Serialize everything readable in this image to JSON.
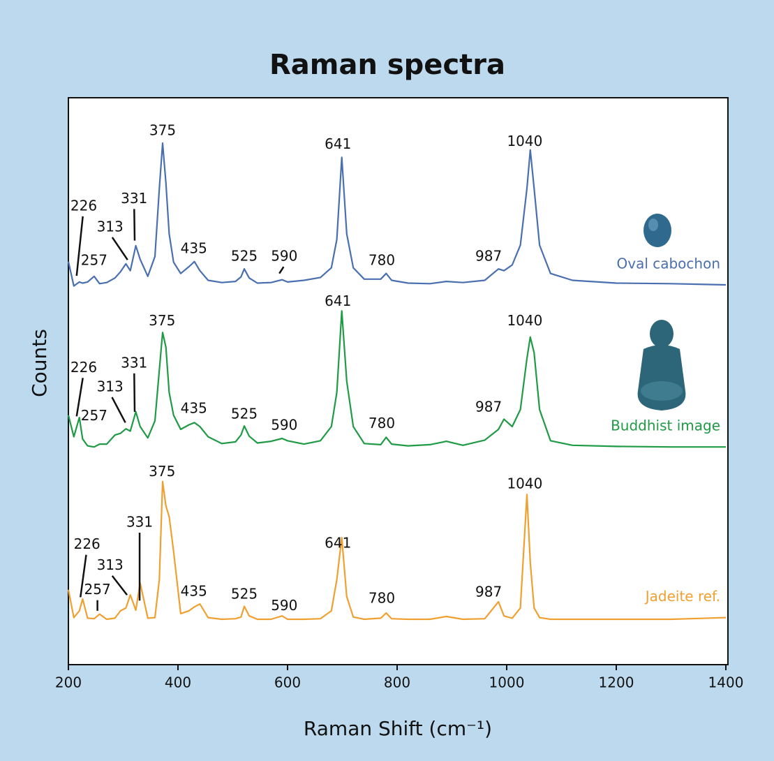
{
  "chart_data": {
    "type": "line",
    "title": "Raman spectra",
    "x_label": "Raman Shift (cm⁻¹)",
    "y_label": "Counts",
    "xlim": [
      200,
      1400
    ],
    "xticks": [
      200,
      400,
      600,
      800,
      1000,
      1200,
      1400
    ],
    "ylim": [
      0,
      100
    ],
    "x": [
      200,
      210,
      220,
      226,
      235,
      247,
      257,
      270,
      285,
      295,
      305,
      313,
      323,
      331,
      345,
      358,
      366,
      372,
      378,
      384,
      392,
      405,
      420,
      430,
      440,
      455,
      480,
      505,
      515,
      521,
      530,
      545,
      570,
      590,
      600,
      630,
      660,
      680,
      690,
      699,
      708,
      720,
      740,
      770,
      780,
      790,
      820,
      860,
      890,
      920,
      960,
      985,
      995,
      1010,
      1025,
      1037,
      1043,
      1050,
      1060,
      1080,
      1120,
      1200,
      1300,
      1400
    ],
    "series": [
      {
        "name": "Oval cabochon",
        "color": "#4a6fb0",
        "values": [
          71.1,
          66.8,
          67.5,
          67.3,
          67.5,
          68.5,
          67.2,
          67.4,
          68.2,
          69.3,
          70.7,
          69.5,
          73.9,
          71.5,
          68.5,
          72,
          84,
          92.0,
          85,
          76,
          71,
          69,
          70.2,
          71.1,
          69.5,
          67.8,
          67.4,
          67.6,
          68.4,
          69.8,
          68.2,
          67.3,
          67.4,
          67.9,
          67.5,
          67.8,
          68.3,
          70,
          75,
          89.5,
          76,
          70,
          68,
          68,
          69.0,
          67.8,
          67.3,
          67.2,
          67.6,
          67.4,
          67.8,
          69.8,
          69.5,
          70.5,
          74,
          84,
          90.8,
          84,
          74,
          69,
          67.8,
          67.3,
          67.2,
          67.0
        ]
      },
      {
        "name": "Buddhist image",
        "color": "#1f9a45",
        "values": [
          44,
          40.2,
          43.6,
          39.8,
          38.6,
          38.4,
          38.9,
          38.9,
          40.5,
          40.8,
          41.6,
          41.2,
          44.6,
          42,
          40,
          43,
          52,
          58.6,
          56,
          48,
          44,
          41.5,
          42.3,
          42.7,
          42,
          40.2,
          39,
          39.3,
          40.5,
          42.1,
          40.3,
          39.1,
          39.4,
          39.9,
          39.5,
          38.9,
          39.5,
          42,
          48,
          62.4,
          50,
          42,
          39,
          38.8,
          40.1,
          38.9,
          38.6,
          38.8,
          39.4,
          38.7,
          39.6,
          41.5,
          43.3,
          42,
          45,
          54,
          57.8,
          55,
          45,
          39.5,
          38.7,
          38.5,
          38.4,
          38.4
        ]
      },
      {
        "name": "Jadeite ref.",
        "color": "#f0a030",
        "values": [
          13.2,
          8.3,
          9.5,
          11.6,
          8.2,
          8.1,
          8.9,
          8.0,
          8.2,
          9.5,
          10,
          12.3,
          9.6,
          14.4,
          8.2,
          8.3,
          15,
          32.3,
          28,
          26.1,
          20,
          9,
          9.5,
          10.2,
          10.7,
          8.3,
          8.0,
          8.1,
          8.4,
          10.3,
          8.6,
          8.0,
          8.0,
          8.6,
          8.0,
          8.0,
          8.1,
          9.5,
          15,
          22.4,
          12,
          8.4,
          8.0,
          8.2,
          9.1,
          8.1,
          8.0,
          8.0,
          8.5,
          8.0,
          8.1,
          11.1,
          8.6,
          8.2,
          10,
          30.0,
          18,
          10,
          8.3,
          8.0,
          8.0,
          8.0,
          8.0,
          8.3
        ]
      }
    ],
    "annotations": [
      {
        "text": "375",
        "x": 372,
        "y": 94.1
      },
      {
        "text": "641",
        "x": 692,
        "y": 91.7
      },
      {
        "text": "1040",
        "x": 1033,
        "y": 92.2
      },
      {
        "text": "331",
        "x": 320,
        "y": 82.1,
        "point": [
          321,
          74.8
        ]
      },
      {
        "text": "226",
        "x": 228,
        "y": 80.8,
        "point": [
          215,
          68.6
        ]
      },
      {
        "text": "313",
        "x": 276,
        "y": 77.1,
        "point": [
          308,
          71.4
        ]
      },
      {
        "text": "257",
        "x": 247,
        "y": 71.2
      },
      {
        "text": "435",
        "x": 429,
        "y": 73.3
      },
      {
        "text": "525",
        "x": 521,
        "y": 71.9
      },
      {
        "text": "590",
        "x": 594,
        "y": 71.9,
        "point": [
          585,
          69.0
        ]
      },
      {
        "text": "780",
        "x": 772,
        "y": 71.2
      },
      {
        "text": "987",
        "x": 967,
        "y": 71.9
      },
      {
        "text": "375",
        "x": 371,
        "y": 60.5
      },
      {
        "text": "641",
        "x": 692,
        "y": 64.0
      },
      {
        "text": "1040",
        "x": 1033,
        "y": 60.5
      },
      {
        "text": "331",
        "x": 320,
        "y": 53.1,
        "point": [
          321,
          44.6
        ]
      },
      {
        "text": "226",
        "x": 228,
        "y": 52.3,
        "point": [
          215,
          43.8
        ]
      },
      {
        "text": "313",
        "x": 276,
        "y": 48.9,
        "point": [
          304,
          42.7
        ]
      },
      {
        "text": "257",
        "x": 247,
        "y": 43.8
      },
      {
        "text": "435",
        "x": 429,
        "y": 45.1
      },
      {
        "text": "525",
        "x": 521,
        "y": 44.1
      },
      {
        "text": "590",
        "x": 594,
        "y": 42.1
      },
      {
        "text": "780",
        "x": 772,
        "y": 42.4
      },
      {
        "text": "987",
        "x": 967,
        "y": 45.3
      },
      {
        "text": "375",
        "x": 371,
        "y": 33.9
      },
      {
        "text": "641",
        "x": 692,
        "y": 21.3
      },
      {
        "text": "1040",
        "x": 1033,
        "y": 31.8
      },
      {
        "text": "331",
        "x": 330,
        "y": 25.0,
        "point": [
          330,
          11.3
        ]
      },
      {
        "text": "226",
        "x": 234,
        "y": 21.1,
        "point": [
          222,
          11.9
        ]
      },
      {
        "text": "313",
        "x": 276,
        "y": 17.4,
        "point": [
          307,
          12.3
        ]
      },
      {
        "text": "257",
        "x": 253,
        "y": 13.1,
        "point": [
          253,
          9.5
        ]
      },
      {
        "text": "435",
        "x": 429,
        "y": 12.8
      },
      {
        "text": "525",
        "x": 521,
        "y": 12.3
      },
      {
        "text": "590",
        "x": 594,
        "y": 10.3
      },
      {
        "text": "780",
        "x": 772,
        "y": 11.6
      },
      {
        "text": "987",
        "x": 967,
        "y": 12.7
      }
    ]
  }
}
